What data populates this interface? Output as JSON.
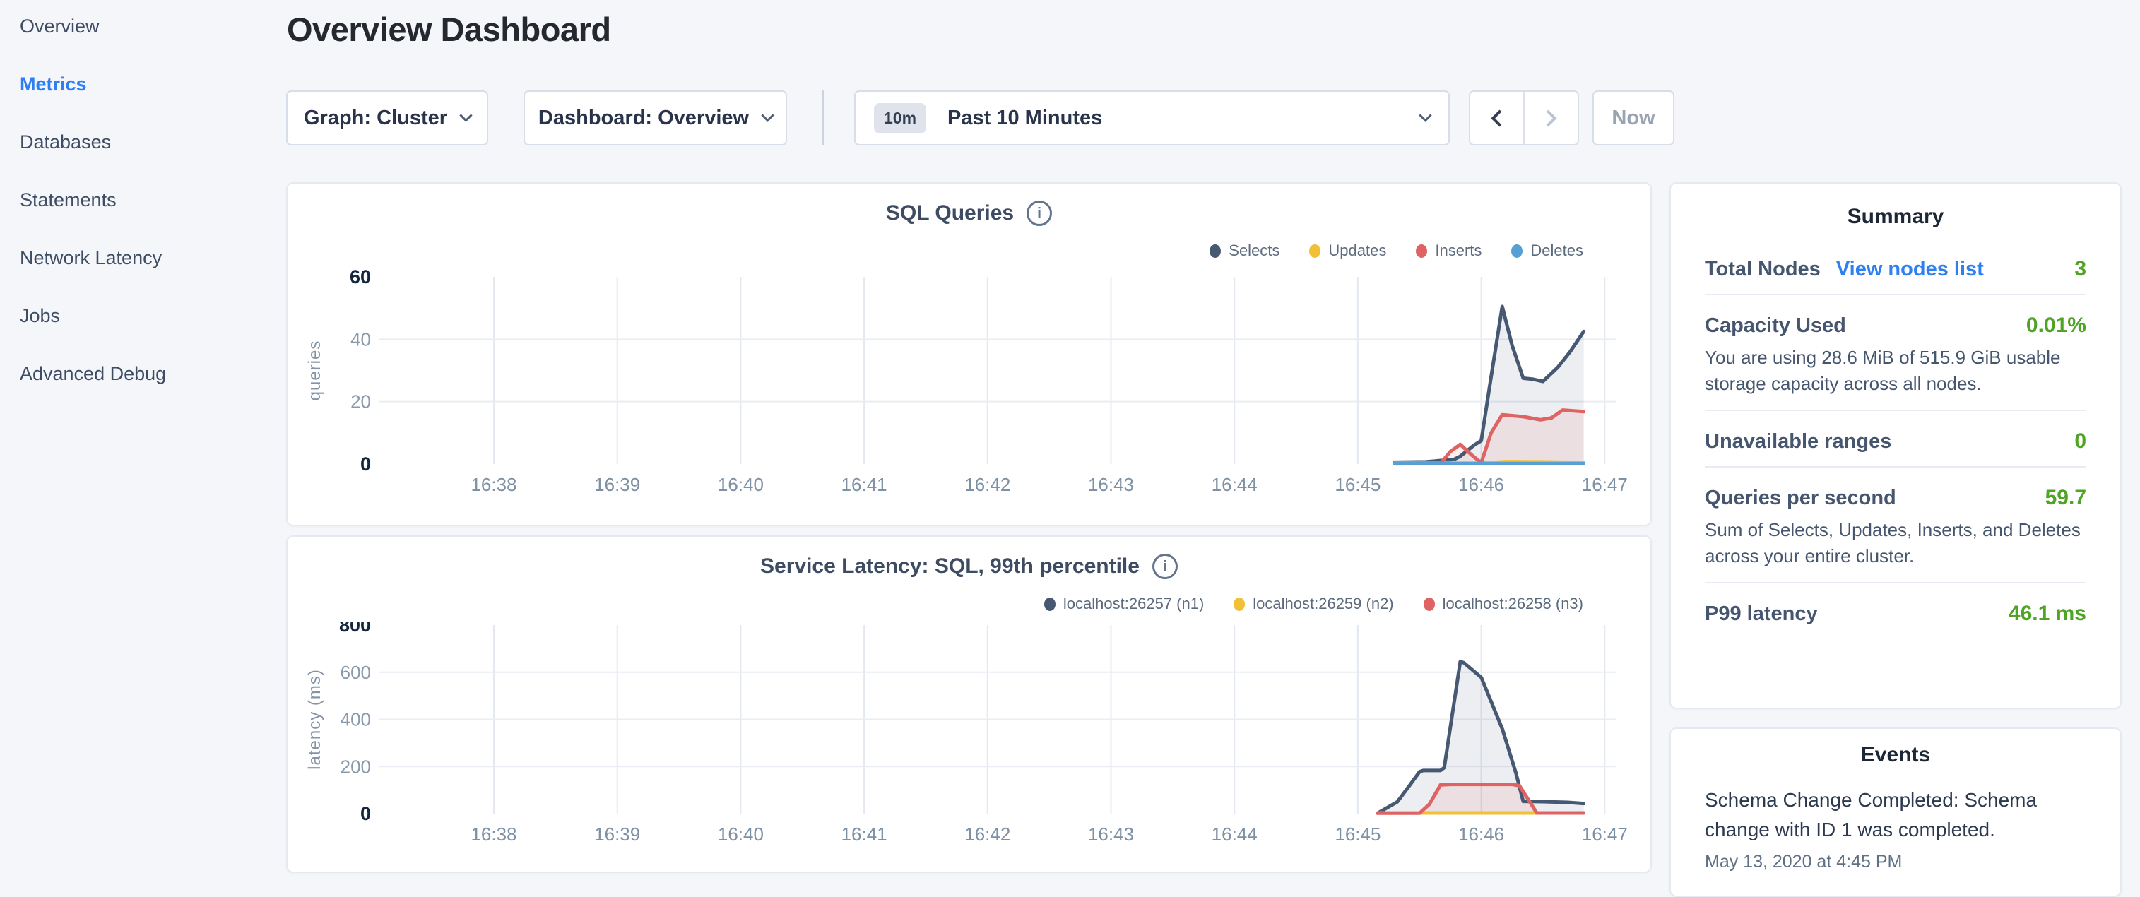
{
  "colors": {
    "accent_blue": "#2e80f0",
    "value_green": "#4fa325",
    "series_navy": "#475872",
    "series_yellow": "#f2c037",
    "series_red": "#e06363",
    "series_blue": "#57a0d4"
  },
  "sidebar": {
    "items": [
      {
        "label": "Overview",
        "active": false
      },
      {
        "label": "Metrics",
        "active": true
      },
      {
        "label": "Databases",
        "active": false
      },
      {
        "label": "Statements",
        "active": false
      },
      {
        "label": "Network Latency",
        "active": false
      },
      {
        "label": "Jobs",
        "active": false
      },
      {
        "label": "Advanced Debug",
        "active": false
      }
    ]
  },
  "header": {
    "title": "Overview Dashboard"
  },
  "toolbar": {
    "graph_dropdown": "Graph: Cluster",
    "dashboard_dropdown": "Dashboard: Overview",
    "time_badge": "10m",
    "time_label": "Past 10 Minutes",
    "now_label": "Now"
  },
  "chart_data": [
    {
      "type": "line",
      "title": "SQL Queries",
      "ylabel": "queries",
      "ylim": [
        0,
        60
      ],
      "y_ticks": [
        0,
        20,
        40,
        60
      ],
      "x_range_minutes": [
        37.1,
        47.1
      ],
      "x_ticks": [
        {
          "t": 38,
          "label": "16:38"
        },
        {
          "t": 39,
          "label": "16:39"
        },
        {
          "t": 40,
          "label": "16:40"
        },
        {
          "t": 41,
          "label": "16:41"
        },
        {
          "t": 42,
          "label": "16:42"
        },
        {
          "t": 43,
          "label": "16:43"
        },
        {
          "t": 44,
          "label": "16:44"
        },
        {
          "t": 45,
          "label": "16:45"
        },
        {
          "t": 46,
          "label": "16:46"
        },
        {
          "t": 47,
          "label": "16:47"
        }
      ],
      "series": [
        {
          "name": "Selects",
          "color": "#475872",
          "points": [
            [
              45.3,
              0.6
            ],
            [
              45.55,
              0.7
            ],
            [
              45.78,
              1.5
            ],
            [
              45.83,
              2.5
            ],
            [
              45.94,
              6
            ],
            [
              46.0,
              7.5
            ],
            [
              46.08,
              28
            ],
            [
              46.17,
              50.5
            ],
            [
              46.25,
              38
            ],
            [
              46.34,
              27.5
            ],
            [
              46.42,
              27.2
            ],
            [
              46.5,
              26.5
            ],
            [
              46.62,
              31
            ],
            [
              46.72,
              36
            ],
            [
              46.83,
              42.5
            ]
          ]
        },
        {
          "name": "Updates",
          "color": "#f2c037",
          "points": [
            [
              45.3,
              0.3
            ],
            [
              46.0,
              0.3
            ],
            [
              46.2,
              0.8
            ],
            [
              46.5,
              0.7
            ],
            [
              46.83,
              0.5
            ]
          ]
        },
        {
          "name": "Inserts",
          "color": "#e06363",
          "points": [
            [
              45.3,
              0.1
            ],
            [
              45.67,
              0.2
            ],
            [
              45.75,
              4.0
            ],
            [
              45.83,
              6.3
            ],
            [
              45.92,
              3.0
            ],
            [
              46.0,
              0.4
            ],
            [
              46.08,
              10.0
            ],
            [
              46.17,
              15.8
            ],
            [
              46.34,
              15.2
            ],
            [
              46.48,
              14.2
            ],
            [
              46.57,
              14.8
            ],
            [
              46.66,
              17.3
            ],
            [
              46.83,
              16.8
            ]
          ]
        },
        {
          "name": "Deletes",
          "color": "#57a0d4",
          "points": [
            [
              45.3,
              0.15
            ],
            [
              46.83,
              0.15
            ]
          ]
        }
      ]
    },
    {
      "type": "line",
      "title": "Service Latency: SQL, 99th percentile",
      "ylabel": "latency (ms)",
      "ylim": [
        0,
        800
      ],
      "y_ticks": [
        0,
        200,
        400,
        600,
        800
      ],
      "x_range_minutes": [
        37.1,
        47.1
      ],
      "x_ticks": [
        {
          "t": 38,
          "label": "16:38"
        },
        {
          "t": 39,
          "label": "16:39"
        },
        {
          "t": 40,
          "label": "16:40"
        },
        {
          "t": 41,
          "label": "16:41"
        },
        {
          "t": 42,
          "label": "16:42"
        },
        {
          "t": 43,
          "label": "16:43"
        },
        {
          "t": 44,
          "label": "16:44"
        },
        {
          "t": 45,
          "label": "16:45"
        },
        {
          "t": 46,
          "label": "16:46"
        },
        {
          "t": 47,
          "label": "16:47"
        }
      ],
      "series": [
        {
          "name": "localhost:26257 (n1)",
          "color": "#475872",
          "points": [
            [
              45.16,
              2
            ],
            [
              45.32,
              50
            ],
            [
              45.42,
              120
            ],
            [
              45.5,
              178
            ],
            [
              45.53,
              183
            ],
            [
              45.67,
              183
            ],
            [
              45.7,
              195
            ],
            [
              45.83,
              645
            ],
            [
              45.86,
              640
            ],
            [
              46.0,
              578
            ],
            [
              46.17,
              360
            ],
            [
              46.28,
              174
            ],
            [
              46.34,
              52
            ],
            [
              46.5,
              51
            ],
            [
              46.7,
              48
            ],
            [
              46.83,
              43
            ]
          ]
        },
        {
          "name": "localhost:26259 (n2)",
          "color": "#f2c037",
          "points": [
            [
              45.16,
              3
            ],
            [
              46.83,
              3
            ]
          ]
        },
        {
          "name": "localhost:26258 (n3)",
          "color": "#e06363",
          "points": [
            [
              45.16,
              2
            ],
            [
              45.5,
              2
            ],
            [
              45.58,
              40
            ],
            [
              45.67,
              122
            ],
            [
              45.75,
              124
            ],
            [
              46.25,
              124
            ],
            [
              46.31,
              118
            ],
            [
              46.45,
              3
            ],
            [
              46.83,
              3
            ]
          ]
        }
      ]
    }
  ],
  "summary": {
    "title": "Summary",
    "rows": [
      {
        "label": "Total Nodes",
        "link": "View nodes list",
        "value": "3"
      },
      {
        "label": "Capacity Used",
        "value": "0.01%",
        "subtext": "You are using 28.6 MiB of 515.9 GiB usable storage capacity across all nodes."
      },
      {
        "label": "Unavailable ranges",
        "value": "0"
      },
      {
        "label": "Queries per second",
        "value": "59.7",
        "subtext": "Sum of Selects, Updates, Inserts, and Deletes across your entire cluster."
      },
      {
        "label": "P99 latency",
        "value": "46.1 ms"
      }
    ]
  },
  "events": {
    "title": "Events",
    "items": [
      {
        "text": "Schema Change Completed: Schema change with ID 1 was completed.",
        "timestamp": "May 13, 2020 at 4:45 PM"
      }
    ]
  }
}
